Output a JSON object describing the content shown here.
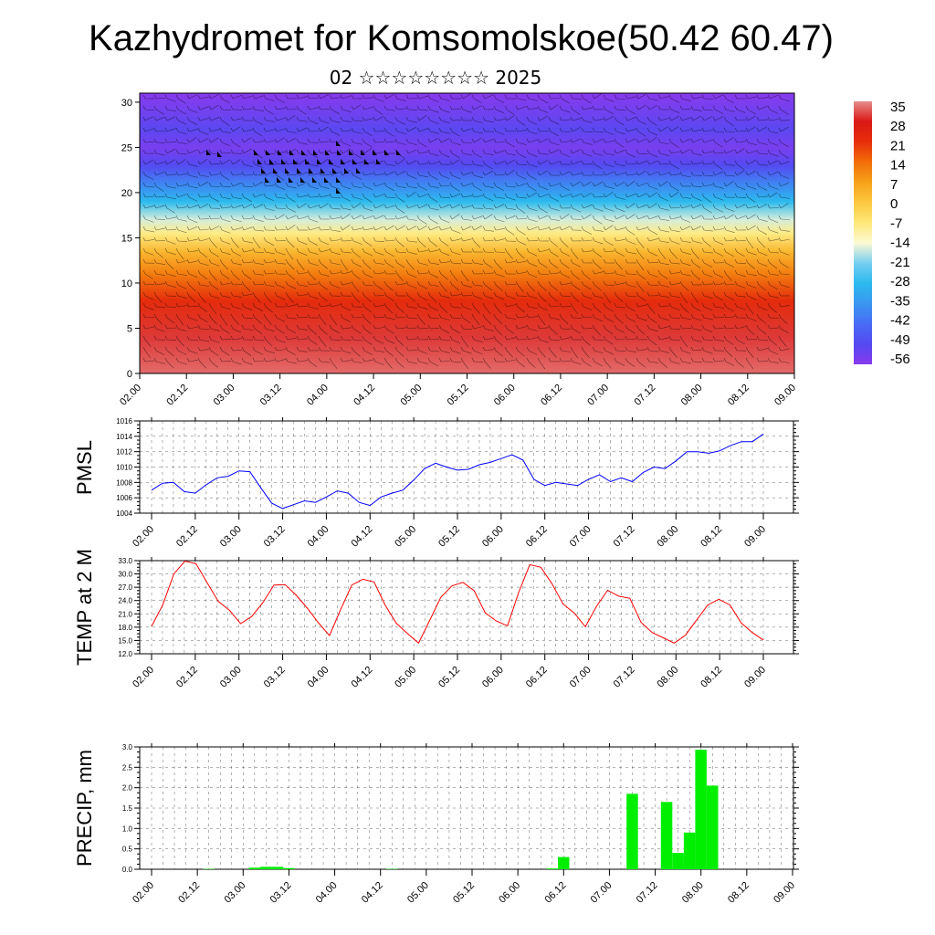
{
  "chart_data": [
    {
      "type": "heatmap",
      "title": "Kazhydromet for Komsomolskoe(50.42 60.47)",
      "subtitle": "02 ☆☆☆☆☆☆☆☆ 2025",
      "x_ticks": [
        "02.00",
        "02.12",
        "03.00",
        "03.12",
        "04.00",
        "04.12",
        "05.00",
        "05.12",
        "06.00",
        "06.12",
        "07.00",
        "07.12",
        "08.00",
        "08.12",
        "09.00"
      ],
      "y_ticks": [
        0,
        5,
        10,
        15,
        20,
        25,
        30
      ],
      "ylim": [
        0,
        31
      ],
      "colorbar": {
        "labels": [
          "35",
          "28",
          "21",
          "14",
          "7",
          "0",
          "-7",
          "-14",
          "-21",
          "-28",
          "-35",
          "-42",
          "-49",
          "-56"
        ]
      },
      "vertical_profile": [
        {
          "y": 0,
          "value": 33
        },
        {
          "y": 4,
          "value": 30
        },
        {
          "y": 8,
          "value": 22
        },
        {
          "y": 11,
          "value": 12
        },
        {
          "y": 13.5,
          "value": 3
        },
        {
          "y": 15.5,
          "value": -8
        },
        {
          "y": 17,
          "value": -16
        },
        {
          "y": 19,
          "value": -28
        },
        {
          "y": 21,
          "value": -38
        },
        {
          "y": 23,
          "value": -49
        },
        {
          "y": 25,
          "value": -54
        },
        {
          "y": 27,
          "value": -50
        },
        {
          "y": 31,
          "value": -56
        }
      ],
      "wind_barbs": "dense"
    },
    {
      "type": "line",
      "ylabel": "PMSL",
      "x_ticks": [
        "02.00",
        "02.12",
        "03.00",
        "03.12",
        "04.00",
        "04.12",
        "05.00",
        "05.12",
        "06.00",
        "06.12",
        "07.00",
        "07.12",
        "08.00",
        "08.12",
        "09.00"
      ],
      "y_ticks": [
        "1004",
        "1006",
        "1008",
        "1010",
        "1012",
        "1014",
        "1016"
      ],
      "ylim": [
        1004,
        1016
      ],
      "grid": true,
      "series": [
        {
          "color": "#0000ff",
          "values": [
            1007.0,
            1007.9,
            1008.0,
            1006.8,
            1006.6,
            1007.7,
            1008.6,
            1008.8,
            1009.5,
            1009.4,
            1007.3,
            1005.3,
            1004.6,
            1005.1,
            1005.6,
            1005.4,
            1006.1,
            1006.9,
            1006.6,
            1005.4,
            1005.0,
            1006.1,
            1006.6,
            1007.0,
            1008.3,
            1009.8,
            1010.5,
            1010.0,
            1009.6,
            1009.7,
            1010.3,
            1010.6,
            1011.1,
            1011.6,
            1010.9,
            1008.4,
            1007.6,
            1008.0,
            1007.8,
            1007.6,
            1008.4,
            1009.0,
            1008.1,
            1008.6,
            1008.1,
            1009.3,
            1010.0,
            1009.8,
            1010.8,
            1012.0,
            1012.0,
            1011.8,
            1012.1,
            1012.8,
            1013.3,
            1013.3,
            1014.3
          ]
        }
      ]
    },
    {
      "type": "line",
      "ylabel": "TEMP at 2 M",
      "x_ticks": [
        "02.00",
        "02.12",
        "03.00",
        "03.12",
        "04.00",
        "04.12",
        "05.00",
        "05.12",
        "06.00",
        "06.12",
        "07.00",
        "07.12",
        "08.00",
        "08.12",
        "09.00"
      ],
      "y_ticks": [
        "12.0",
        "15.0",
        "18.0",
        "21.0",
        "24.0",
        "27.0",
        "30.0",
        "33.0"
      ],
      "ylim": [
        12,
        33
      ],
      "grid": true,
      "series": [
        {
          "color": "#ff0000",
          "values": [
            18.2,
            23.0,
            30.0,
            32.9,
            32.3,
            28.0,
            23.8,
            21.8,
            18.8,
            20.4,
            23.5,
            27.5,
            27.6,
            25.2,
            22.3,
            19.0,
            16.1,
            22.0,
            27.5,
            28.8,
            28.2,
            23.0,
            18.9,
            16.6,
            14.4,
            19.5,
            24.7,
            27.3,
            28.1,
            26.2,
            21.2,
            19.4,
            18.3,
            25.8,
            32.1,
            31.5,
            27.8,
            23.2,
            21.2,
            18.1,
            22.7,
            26.3,
            25.0,
            24.5,
            19.1,
            16.8,
            15.6,
            14.4,
            16.2,
            19.6,
            23.0,
            24.3,
            23.0,
            19.0,
            16.8,
            15.1
          ]
        }
      ]
    },
    {
      "type": "bar",
      "ylabel": "PRECIP, mm",
      "x_ticks": [
        "02.00",
        "02.12",
        "03.00",
        "03.12",
        "04.00",
        "04.12",
        "05.00",
        "05.12",
        "06.00",
        "06.12",
        "07.00",
        "07.12",
        "08.00",
        "08.12",
        "09.00"
      ],
      "y_ticks": [
        "0.0",
        "0.5",
        "1.0",
        "1.5",
        "2.0",
        "2.5",
        "3.0"
      ],
      "ylim": [
        0,
        3
      ],
      "grid": true,
      "bar_color": "#00ee00",
      "values": [
        0,
        0,
        0,
        0,
        0,
        0.01,
        0,
        0,
        0,
        0.04,
        0.06,
        0.06,
        0.03,
        0,
        0,
        0,
        0,
        0,
        0,
        0,
        0,
        0.01,
        0,
        0,
        0,
        0,
        0,
        0,
        0,
        0,
        0,
        0,
        0,
        0,
        0,
        0.02,
        0.3,
        0,
        0,
        0,
        0,
        0,
        1.85,
        0,
        0,
        1.65,
        0.4,
        0.9,
        2.93,
        2.05,
        0,
        0,
        0,
        0,
        0,
        0,
        0
      ]
    }
  ]
}
